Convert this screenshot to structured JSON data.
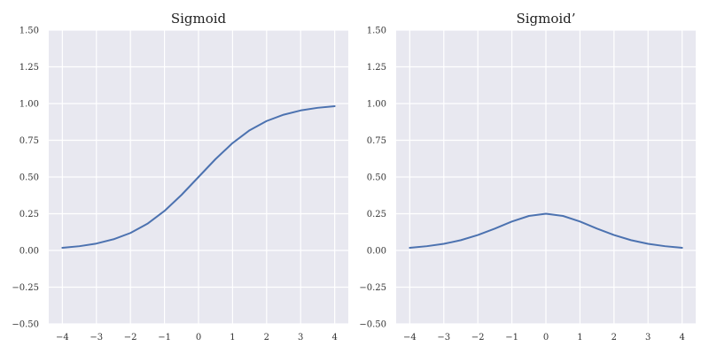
{
  "colors": {
    "background": "#ffffff",
    "panel": "#e8e8f0",
    "grid": "#ffffff",
    "line": "#4c72b0"
  },
  "chart_data": [
    {
      "type": "line",
      "title": "Sigmoid",
      "xlabel": "",
      "ylabel": "",
      "xlim": [
        -4.4,
        4.4
      ],
      "ylim": [
        -0.5,
        1.5
      ],
      "xticks": [
        -4,
        -3,
        -2,
        -1,
        0,
        1,
        2,
        3,
        4
      ],
      "xtick_labels": [
        "−4",
        "−3",
        "−2",
        "−1",
        "0",
        "1",
        "2",
        "3",
        "4"
      ],
      "yticks": [
        -0.5,
        -0.25,
        0,
        0.25,
        0.5,
        0.75,
        1,
        1.25,
        1.5
      ],
      "ytick_labels": [
        "−0.50",
        "−0.25",
        "0.00",
        "0.25",
        "0.50",
        "0.75",
        "1.00",
        "1.25",
        "1.50"
      ],
      "grid": true,
      "series": [
        {
          "x": [
            -4,
            -3.5,
            -3,
            -2.5,
            -2,
            -1.5,
            -1,
            -0.5,
            0,
            0.5,
            1,
            1.5,
            2,
            2.5,
            3,
            3.5,
            4
          ],
          "y": [
            0.018,
            0.029,
            0.047,
            0.076,
            0.119,
            0.182,
            0.269,
            0.378,
            0.5,
            0.622,
            0.731,
            0.818,
            0.881,
            0.924,
            0.953,
            0.971,
            0.982
          ]
        }
      ]
    },
    {
      "type": "line",
      "title": "Sigmoid’",
      "xlabel": "",
      "ylabel": "",
      "xlim": [
        -4.4,
        4.4
      ],
      "ylim": [
        -0.5,
        1.5
      ],
      "xticks": [
        -4,
        -3,
        -2,
        -1,
        0,
        1,
        2,
        3,
        4
      ],
      "xtick_labels": [
        "−4",
        "−3",
        "−2",
        "−1",
        "0",
        "1",
        "2",
        "3",
        "4"
      ],
      "yticks": [
        -0.5,
        -0.25,
        0,
        0.25,
        0.5,
        0.75,
        1,
        1.25,
        1.5
      ],
      "ytick_labels": [
        "−0.50",
        "−0.25",
        "0.00",
        "0.25",
        "0.50",
        "0.75",
        "1.00",
        "1.25",
        "1.50"
      ],
      "grid": true,
      "series": [
        {
          "x": [
            -4,
            -3.5,
            -3,
            -2.5,
            -2,
            -1.5,
            -1,
            -0.5,
            0,
            0.5,
            1,
            1.5,
            2,
            2.5,
            3,
            3.5,
            4
          ],
          "y": [
            0.018,
            0.029,
            0.045,
            0.07,
            0.105,
            0.149,
            0.197,
            0.235,
            0.25,
            0.235,
            0.197,
            0.149,
            0.105,
            0.07,
            0.045,
            0.029,
            0.018
          ]
        }
      ]
    }
  ]
}
